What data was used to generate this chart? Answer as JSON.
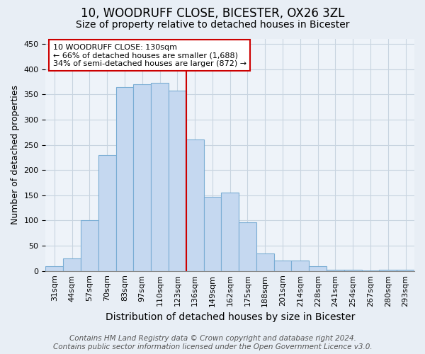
{
  "title": "10, WOODRUFF CLOSE, BICESTER, OX26 3ZL",
  "subtitle": "Size of property relative to detached houses in Bicester",
  "xlabel": "Distribution of detached houses by size in Bicester",
  "ylabel": "Number of detached properties",
  "bar_labels": [
    "31sqm",
    "44sqm",
    "57sqm",
    "70sqm",
    "83sqm",
    "97sqm",
    "110sqm",
    "123sqm",
    "136sqm",
    "149sqm",
    "162sqm",
    "175sqm",
    "188sqm",
    "201sqm",
    "214sqm",
    "228sqm",
    "241sqm",
    "254sqm",
    "267sqm",
    "280sqm",
    "293sqm"
  ],
  "bar_values": [
    10,
    25,
    100,
    230,
    365,
    370,
    373,
    357,
    260,
    147,
    155,
    96,
    34,
    21,
    21,
    10,
    3,
    2,
    1,
    2,
    2
  ],
  "bar_color": "#c5d8f0",
  "bar_edge_color": "#7aadd4",
  "vline_color": "#cc0000",
  "annotation_title": "10 WOODRUFF CLOSE: 130sqm",
  "annotation_line1": "← 66% of detached houses are smaller (1,688)",
  "annotation_line2": "34% of semi-detached houses are larger (872) →",
  "annotation_box_edge": "#cc0000",
  "annotation_box_face": "#ffffff",
  "ylim": [
    0,
    460
  ],
  "yticks": [
    0,
    50,
    100,
    150,
    200,
    250,
    300,
    350,
    400,
    450
  ],
  "footer1": "Contains HM Land Registry data © Crown copyright and database right 2024.",
  "footer2": "Contains public sector information licensed under the Open Government Licence v3.0.",
  "title_fontsize": 12,
  "subtitle_fontsize": 10,
  "xlabel_fontsize": 10,
  "ylabel_fontsize": 9,
  "tick_fontsize": 8,
  "annotation_fontsize": 8,
  "footer_fontsize": 7.5,
  "bg_color": "#e8eef5",
  "plot_bg_color": "#eef3f9",
  "grid_color": "#c8d4e0"
}
